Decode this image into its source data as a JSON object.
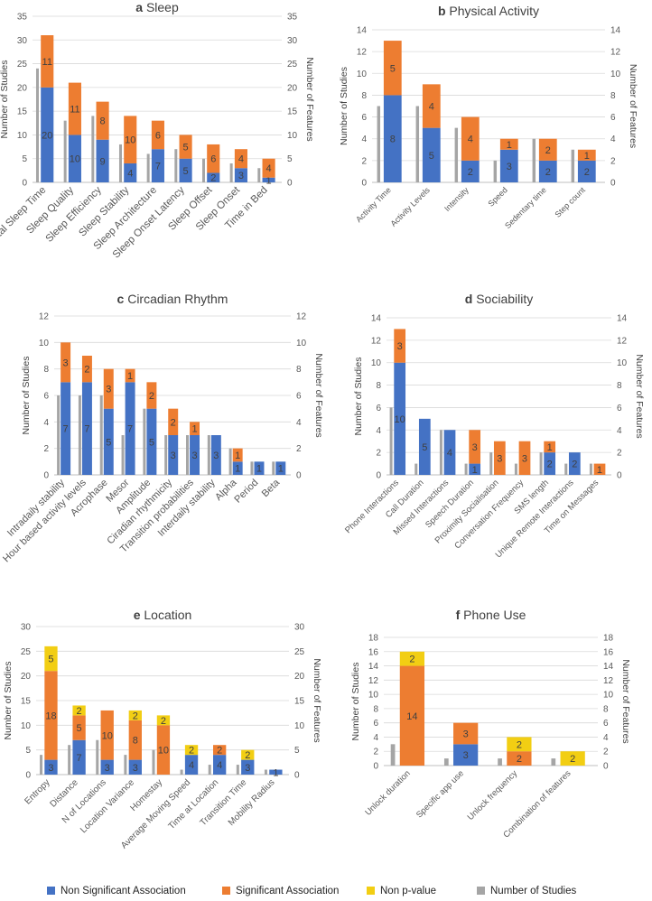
{
  "colors": {
    "non_significant": "#4472C4",
    "significant": "#ED7D31",
    "non_pvalue": "#F2CE13",
    "num_studies": "#A5A5A5",
    "axis_text": "#595959",
    "grid": "#D9D9D9"
  },
  "legend": {
    "non_significant": "Non Significant Association",
    "significant": "Significant Association",
    "non_pvalue": "Non p-value",
    "num_studies": "Number of Studies"
  },
  "chart_data": [
    {
      "type": "bar",
      "panel_letter": "a",
      "title": "Sleep",
      "ylabel_left": "Number of Studies",
      "ylabel_right": "Number of Features",
      "ylim": [
        0,
        35
      ],
      "yticks": [
        "0",
        "5",
        "10",
        "15",
        "20",
        "25",
        "30",
        "35"
      ],
      "categories": [
        "Total Sleep Time",
        "Sleep Quality",
        "Sleep Efficiency",
        "Sleep Stability",
        "Sleep Architecture",
        "Sleep Onset Latency",
        "Sleep Offset",
        "Sleep Onset",
        "Time in Bed"
      ],
      "studies": [
        24,
        13,
        14,
        8,
        6,
        7,
        5,
        4,
        3
      ],
      "series": [
        {
          "name": "Non Significant Association",
          "key": "non_significant",
          "values": [
            20,
            10,
            9,
            4,
            7,
            5,
            2,
            3,
            1
          ]
        },
        {
          "name": "Significant Association",
          "key": "significant",
          "values": [
            11,
            11,
            8,
            10,
            6,
            5,
            6,
            4,
            4
          ]
        },
        {
          "name": "Non p-value",
          "key": "non_pvalue",
          "values": [
            0,
            0,
            0,
            0,
            0,
            0,
            0,
            0,
            0
          ]
        }
      ]
    },
    {
      "type": "bar",
      "panel_letter": "b",
      "title": "Physical Activity",
      "ylabel_left": "Number of Studies",
      "ylabel_right": "Number of Features",
      "ylim": [
        0,
        14
      ],
      "yticks": [
        "0",
        "2",
        "4",
        "6",
        "8",
        "10",
        "12",
        "14"
      ],
      "categories": [
        "Activity Time",
        "Activity Levels",
        "Intensity",
        "Speed",
        "Sedentary time",
        "Step count"
      ],
      "studies": [
        7,
        7,
        5,
        2,
        4,
        3
      ],
      "series": [
        {
          "name": "Non Significant Association",
          "key": "non_significant",
          "values": [
            8,
            5,
            2,
            3,
            2,
            2
          ]
        },
        {
          "name": "Significant Association",
          "key": "significant",
          "values": [
            5,
            4,
            4,
            1,
            2,
            1
          ]
        },
        {
          "name": "Non p-value",
          "key": "non_pvalue",
          "values": [
            0,
            0,
            0,
            0,
            0,
            0
          ]
        }
      ]
    },
    {
      "type": "bar",
      "panel_letter": "c",
      "title": "Circadian Rhythm",
      "ylabel_left": "Number of Studies",
      "ylabel_right": "Number of Features",
      "ylim": [
        0,
        12
      ],
      "yticks": [
        "0",
        "2",
        "4",
        "6",
        "8",
        "10",
        "12"
      ],
      "categories": [
        "Intradaily stability",
        "Hour based activity levels",
        "Acrophase",
        "Mesor",
        "Amplitude",
        "Ciradian rhythmicity",
        "Transition probabilities",
        "Interdaily stability",
        "Alpha",
        "Period",
        "Beta"
      ],
      "studies": [
        6,
        6,
        6,
        3,
        5,
        3,
        3,
        3,
        2,
        1,
        1
      ],
      "series": [
        {
          "name": "Non Significant Association",
          "key": "non_significant",
          "values": [
            7,
            7,
            5,
            7,
            5,
            3,
            3,
            3,
            1,
            1,
            1
          ]
        },
        {
          "name": "Significant Association",
          "key": "significant",
          "values": [
            3,
            2,
            3,
            1,
            2,
            2,
            1,
            0,
            1,
            0,
            0
          ]
        },
        {
          "name": "Non p-value",
          "key": "non_pvalue",
          "values": [
            0,
            0,
            0,
            0,
            0,
            0,
            0,
            0,
            0,
            0,
            0
          ]
        }
      ]
    },
    {
      "type": "bar",
      "panel_letter": "d",
      "title": "Sociability",
      "ylabel_left": "Number of Studies",
      "ylabel_right": "Number of Features",
      "ylim": [
        0,
        14
      ],
      "yticks": [
        "0",
        "2",
        "4",
        "6",
        "8",
        "10",
        "12",
        "14"
      ],
      "categories": [
        "Phone Interactions",
        "Call Duration",
        "Missed Interactions",
        "Speech Duration",
        "Proximity Socialisation",
        "Conversation Frequency",
        "SMS length",
        "Unique Remote Interactions",
        "Time on Messages"
      ],
      "studies": [
        6,
        1,
        4,
        1,
        2,
        1,
        2,
        1,
        1
      ],
      "series": [
        {
          "name": "Non Significant Association",
          "key": "non_significant",
          "values": [
            10,
            5,
            4,
            1,
            0,
            0,
            2,
            2,
            0
          ]
        },
        {
          "name": "Significant Association",
          "key": "significant",
          "values": [
            3,
            0,
            0,
            3,
            3,
            3,
            1,
            0,
            1
          ]
        },
        {
          "name": "Non p-value",
          "key": "non_pvalue",
          "values": [
            0,
            0,
            0,
            0,
            0,
            0,
            0,
            0,
            0
          ]
        }
      ]
    },
    {
      "type": "bar",
      "panel_letter": "e",
      "title": "Location",
      "ylabel_left": "Number of Studies",
      "ylabel_right": "Number of Features",
      "ylim": [
        0,
        30
      ],
      "yticks": [
        "0",
        "5",
        "10",
        "15",
        "20",
        "25",
        "30"
      ],
      "categories": [
        "Entropy",
        "Distance",
        "N of Locations",
        "Location Variance",
        "Homestay",
        "Average Moving Speed",
        "Time at Location",
        "Transition Time",
        "Mobility Radius"
      ],
      "studies": [
        4,
        6,
        7,
        4,
        5,
        1,
        2,
        2,
        1
      ],
      "series": [
        {
          "name": "Non Significant Association",
          "key": "non_significant",
          "values": [
            3,
            7,
            3,
            3,
            0,
            4,
            4,
            3,
            1
          ]
        },
        {
          "name": "Significant Association",
          "key": "significant",
          "values": [
            18,
            5,
            10,
            8,
            10,
            0,
            2,
            0,
            0
          ]
        },
        {
          "name": "Non p-value",
          "key": "non_pvalue",
          "values": [
            5,
            2,
            0,
            2,
            2,
            2,
            0,
            2,
            0
          ]
        }
      ]
    },
    {
      "type": "bar",
      "panel_letter": "f",
      "title": "Phone Use",
      "ylabel_left": "Number of Studies",
      "ylabel_right": "Number of Features",
      "ylim": [
        0,
        18
      ],
      "yticks": [
        "0",
        "2",
        "4",
        "6",
        "8",
        "10",
        "12",
        "14",
        "16",
        "18"
      ],
      "categories": [
        "Unlock duration",
        "Specific app use",
        "Unlock frequency",
        "Combination of features"
      ],
      "studies": [
        3,
        1,
        1,
        1
      ],
      "series": [
        {
          "name": "Non Significant Association",
          "key": "non_significant",
          "values": [
            0,
            3,
            0,
            0
          ]
        },
        {
          "name": "Significant Association",
          "key": "significant",
          "values": [
            14,
            3,
            2,
            0
          ]
        },
        {
          "name": "Non p-value",
          "key": "non_pvalue",
          "values": [
            2,
            0,
            2,
            2
          ]
        }
      ]
    }
  ]
}
